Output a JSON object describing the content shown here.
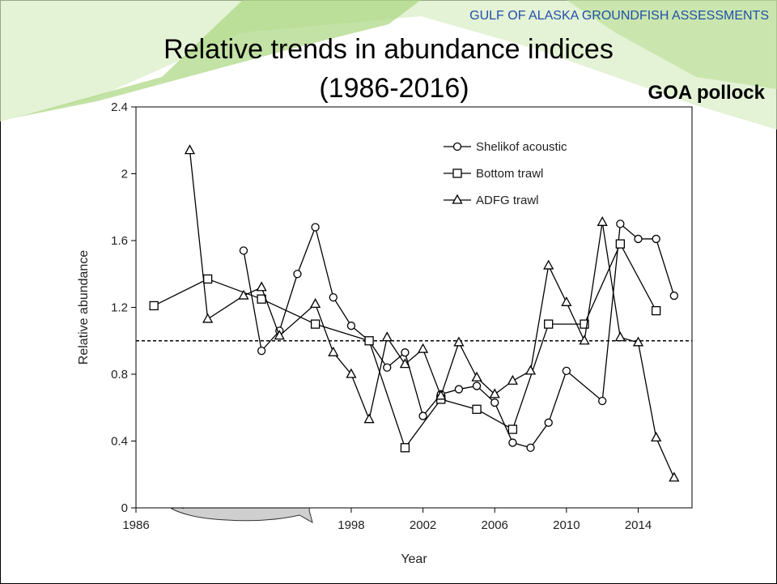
{
  "header": {
    "banner": "GULF OF ALASKA GROUNDFISH ASSESSMENTS",
    "title": "Relative trends in abundance indices",
    "subtitle": "(1986-2016)",
    "species": "GOA pollock"
  },
  "chart_data": {
    "type": "line",
    "x_label": "Year",
    "y_label": "Relative abundance",
    "xlim": [
      1986,
      2017
    ],
    "xticks": [
      1986,
      1998,
      2002,
      2006,
      2010,
      2014
    ],
    "ylim": [
      0,
      2.4
    ],
    "yticks": [
      0,
      0.4,
      0.8,
      1.2,
      1.6,
      2,
      2.4
    ],
    "reference_line": 1,
    "color": "#000000",
    "legend": "top-right",
    "series": [
      {
        "name": "Shelikof acoustic",
        "marker": "circle",
        "x": [
          1992,
          1993,
          1994,
          1995,
          1996,
          1997,
          1998,
          1999,
          2000,
          2001,
          2002,
          2003,
          2004,
          2005,
          2006,
          2007,
          2008,
          2009,
          2010,
          2012,
          2013,
          2014,
          2015,
          2016
        ],
        "values": [
          1.54,
          0.94,
          1.06,
          1.4,
          1.68,
          1.26,
          1.09,
          1.0,
          0.84,
          0.93,
          0.55,
          0.68,
          0.71,
          0.73,
          0.63,
          0.39,
          0.36,
          0.51,
          0.82,
          0.64,
          1.7,
          1.61,
          1.61,
          1.27
        ]
      },
      {
        "name": "Bottom trawl",
        "marker": "square",
        "x": [
          1987,
          1990,
          1993,
          1996,
          1999,
          2001,
          2003,
          2005,
          2007,
          2009,
          2011,
          2013,
          2015
        ],
        "values": [
          1.21,
          1.37,
          1.25,
          1.1,
          1.0,
          0.36,
          0.65,
          0.59,
          0.47,
          1.1,
          1.1,
          1.58,
          1.18
        ]
      },
      {
        "name": "ADFG trawl",
        "marker": "triangle",
        "x": [
          1989,
          1990,
          1992,
          1993,
          1994,
          1996,
          1997,
          1998,
          1999,
          2000,
          2001,
          2002,
          2003,
          2004,
          2005,
          2006,
          2007,
          2008,
          2009,
          2010,
          2011,
          2012,
          2013,
          2014,
          2015,
          2016
        ],
        "values": [
          2.14,
          1.13,
          1.27,
          1.32,
          1.03,
          1.22,
          0.93,
          0.8,
          0.53,
          1.02,
          0.86,
          0.95,
          0.67,
          0.99,
          0.78,
          0.68,
          0.76,
          0.82,
          1.45,
          1.23,
          1.0,
          1.71,
          1.02,
          0.99,
          0.42,
          0.18
        ]
      }
    ]
  }
}
